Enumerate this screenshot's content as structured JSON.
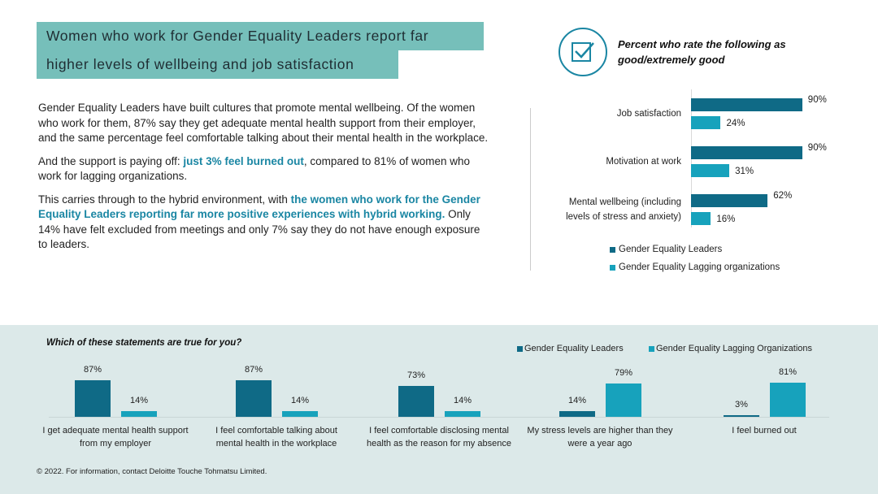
{
  "title_lines": [
    "Women who work for Gender Equality Leaders report far",
    "higher levels of wellbeing and job satisfaction"
  ],
  "paragraphs": [
    [
      {
        "text": "Gender Equality Leaders have built cultures that promote mental wellbeing. Of the women who work for them, 87% say they get adequate mental health support from their employer, and the same percentage feel comfortable talking about their mental health in the workplace.",
        "highlight": false
      }
    ],
    [
      {
        "text": "And the support is paying off: ",
        "highlight": false
      },
      {
        "text": "just 3% feel burned out",
        "highlight": true
      },
      {
        "text": ", compared to 81% of women who work for lagging organizations.",
        "highlight": false
      }
    ],
    [
      {
        "text": "This carries through to the hybrid environment, with ",
        "highlight": false
      },
      {
        "text": "the women who work for the Gender Equality Leaders reporting far more positive experiences with hybrid working.",
        "highlight": true
      },
      {
        "text": " Only 14% have felt excluded from meetings and only 7% say they do not have enough exposure to leaders.",
        "highlight": false
      }
    ]
  ],
  "chart_data": [
    {
      "type": "hbar",
      "title": "Percent who rate the following as good/extremely good",
      "categories": [
        "Job satisfaction",
        "Motivation at work",
        "Mental wellbeing (including levels of stress and anxiety)"
      ],
      "series": [
        {
          "name": "Gender Equality Leaders",
          "color": "#0f6a86",
          "values": [
            90,
            90,
            62
          ],
          "value_labels": [
            "90%",
            "90%",
            "62%"
          ]
        },
        {
          "name": "Gender Equality Lagging organizations",
          "color": "#17a2bc",
          "values": [
            24,
            31,
            16
          ],
          "value_labels": [
            "24%",
            "31%",
            "16%"
          ]
        }
      ]
    },
    {
      "type": "bar",
      "title": "Which of these statements are true for you?",
      "categories": [
        "I get adequate mental health support from my employer",
        "I feel comfortable talking about mental health in the workplace",
        "I feel comfortable disclosing mental health as the reason for my absence",
        "My stress levels are higher than they were a year ago",
        "I feel burned out"
      ],
      "series": [
        {
          "name": "Gender Equality Leaders",
          "color": "#0f6a86",
          "values": [
            87,
            87,
            73,
            14,
            3
          ],
          "value_labels": [
            "87%",
            "87%",
            "73%",
            "14%",
            "3%"
          ]
        },
        {
          "name": "Gender Equality Lagging Organizations",
          "color": "#17a2bc",
          "values": [
            14,
            14,
            14,
            79,
            81
          ],
          "value_labels": [
            "14%",
            "14%",
            "14%",
            "79%",
            "81%"
          ]
        }
      ]
    }
  ],
  "footer": "© 2022. For information, contact Deloitte Touche Tohmatsu Limited."
}
